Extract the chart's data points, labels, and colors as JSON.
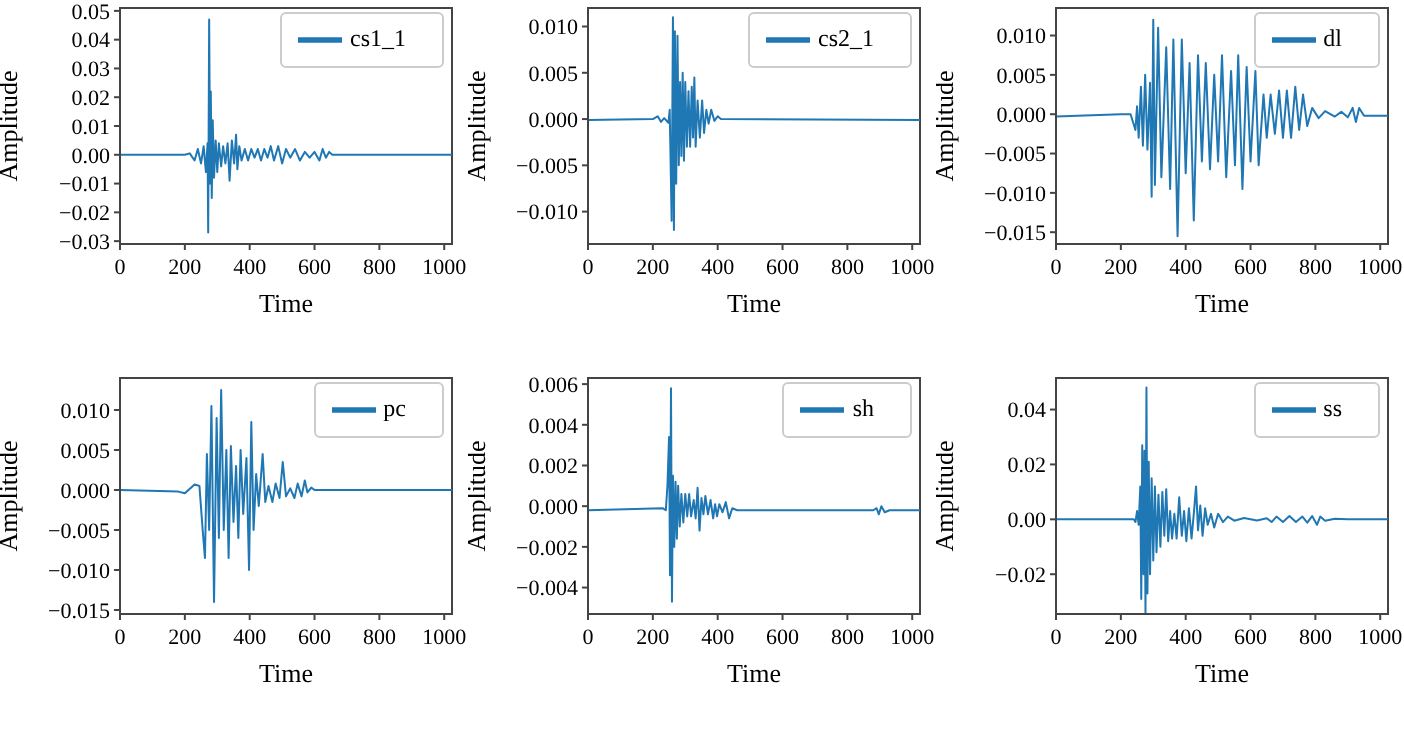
{
  "chart_data": [
    {
      "type": "line",
      "xlabel": "Time",
      "ylabel": "Amplitude",
      "legend": "top right",
      "xlim": [
        0,
        1024
      ],
      "xticks": [
        0,
        200,
        400,
        600,
        800,
        1000
      ],
      "ylim": [
        -0.031,
        0.051
      ],
      "yticks": [
        {
          "value": -0.03,
          "label": "−0.03"
        },
        {
          "value": -0.02,
          "label": "−0.02"
        },
        {
          "value": -0.01,
          "label": "−0.01"
        },
        {
          "value": 0,
          "label": "0.00"
        },
        {
          "value": 0.01,
          "label": "0.01"
        },
        {
          "value": 0.02,
          "label": "0.02"
        },
        {
          "value": 0.03,
          "label": "0.03"
        },
        {
          "value": 0.04,
          "label": "0.04"
        },
        {
          "value": 0.05,
          "label": "0.05"
        }
      ],
      "series": [
        {
          "name": "cs1_1",
          "color": "#1f77b4",
          "x": [
            0,
            200,
            215,
            230,
            240,
            250,
            258,
            265,
            270,
            272,
            275,
            278,
            280,
            283,
            286,
            290,
            295,
            300,
            305,
            312,
            318,
            325,
            332,
            338,
            345,
            352,
            358,
            362,
            368,
            375,
            385,
            395,
            405,
            415,
            425,
            435,
            445,
            455,
            465,
            475,
            488,
            500,
            512,
            525,
            540,
            555,
            570,
            585,
            600,
            615,
            625,
            635,
            645,
            655,
            1024
          ],
          "values": [
            0,
            0,
            0.0005,
            -0.002,
            0.002,
            -0.003,
            0.003,
            -0.006,
            0.004,
            -0.027,
            0.047,
            -0.01,
            0.022,
            -0.015,
            0.012,
            -0.008,
            0.005,
            -0.006,
            0.004,
            -0.004,
            0.003,
            -0.003,
            0.004,
            -0.009,
            0.005,
            -0.003,
            0.007,
            -0.005,
            0.003,
            -0.002,
            0.002,
            -0.002,
            0.002,
            -0.001,
            0.002,
            -0.002,
            0.002,
            -0.001,
            0.003,
            -0.002,
            0.003,
            -0.003,
            0.002,
            -0.001,
            0.002,
            -0.002,
            0.001,
            -0.001,
            0.001,
            -0.002,
            0.002,
            -0.001,
            0.001,
            0,
            0
          ]
        }
      ]
    },
    {
      "type": "line",
      "xlabel": "Time",
      "ylabel": "Amplitude",
      "legend": "top right",
      "xlim": [
        0,
        1024
      ],
      "xticks": [
        0,
        200,
        400,
        600,
        800,
        1000
      ],
      "ylim": [
        -0.0135,
        0.012
      ],
      "yticks": [
        {
          "value": -0.01,
          "label": "−0.010"
        },
        {
          "value": -0.005,
          "label": "−0.005"
        },
        {
          "value": 0,
          "label": "0.000"
        },
        {
          "value": 0.005,
          "label": "0.005"
        },
        {
          "value": 0.01,
          "label": "0.010"
        }
      ],
      "series": [
        {
          "name": "cs2_1",
          "color": "#1f77b4",
          "x": [
            0,
            200,
            215,
            225,
            235,
            248,
            252,
            258,
            262,
            265,
            268,
            272,
            276,
            280,
            284,
            288,
            292,
            296,
            300,
            305,
            310,
            315,
            320,
            324,
            328,
            332,
            338,
            345,
            352,
            358,
            365,
            372,
            380,
            390,
            400,
            410,
            1024
          ],
          "values": [
            -0.0001,
            0,
            0.0003,
            -0.0003,
            0.0001,
            -0.0004,
            0.001,
            -0.011,
            0.011,
            -0.012,
            0.0095,
            -0.007,
            0.009,
            -0.005,
            0.004,
            -0.004,
            0.005,
            -0.0045,
            0.004,
            -0.003,
            0.003,
            -0.003,
            0.0035,
            -0.002,
            0.0045,
            -0.003,
            0.002,
            -0.002,
            0.002,
            -0.0015,
            0.001,
            -0.0005,
            0.001,
            -0.0002,
            0.0003,
            0,
            -0.0001
          ]
        }
      ]
    },
    {
      "type": "line",
      "xlabel": "Time",
      "ylabel": "Amplitude",
      "legend": "top right",
      "xlim": [
        0,
        1024
      ],
      "xticks": [
        0,
        200,
        400,
        600,
        800,
        1000
      ],
      "ylim": [
        -0.0165,
        0.0135
      ],
      "yticks": [
        {
          "value": -0.015,
          "label": "−0.015"
        },
        {
          "value": -0.01,
          "label": "−0.010"
        },
        {
          "value": -0.005,
          "label": "−0.005"
        },
        {
          "value": 0,
          "label": "0.000"
        },
        {
          "value": 0.005,
          "label": "0.005"
        },
        {
          "value": 0.01,
          "label": "0.010"
        }
      ],
      "series": [
        {
          "name": "dl",
          "color": "#1f77b4",
          "x": [
            0,
            200,
            230,
            245,
            250,
            255,
            262,
            268,
            275,
            282,
            290,
            295,
            300,
            305,
            315,
            325,
            340,
            352,
            362,
            375,
            388,
            400,
            412,
            425,
            438,
            450,
            462,
            475,
            488,
            500,
            512,
            525,
            540,
            552,
            562,
            575,
            588,
            600,
            615,
            625,
            640,
            650,
            662,
            675,
            688,
            700,
            712,
            725,
            738,
            750,
            762,
            775,
            790,
            810,
            830,
            860,
            880,
            900,
            915,
            925,
            935,
            950,
            1024
          ],
          "values": [
            -0.0003,
            0,
            0,
            -0.002,
            0.001,
            -0.003,
            0.0035,
            -0.004,
            0.005,
            -0.0045,
            0.004,
            -0.0105,
            0.012,
            -0.009,
            0.011,
            -0.008,
            0.0085,
            -0.0095,
            0.0095,
            -0.0155,
            0.0095,
            -0.0075,
            0.0065,
            -0.0135,
            0.0075,
            -0.006,
            0.0065,
            -0.007,
            0.005,
            -0.006,
            0.0075,
            -0.008,
            0.0055,
            -0.0065,
            0.0075,
            -0.0095,
            0.006,
            -0.006,
            0.0055,
            -0.0065,
            0.0025,
            -0.003,
            0.0025,
            -0.0025,
            0.003,
            -0.003,
            0.003,
            -0.003,
            0.0035,
            -0.002,
            0.0025,
            -0.0015,
            0.0008,
            -0.0005,
            0.0004,
            -0.0003,
            0.0003,
            -0.0004,
            0.0008,
            -0.001,
            0.0008,
            -0.0002,
            -0.0002
          ]
        }
      ]
    },
    {
      "type": "line",
      "xlabel": "Time",
      "ylabel": "Amplitude",
      "legend": "top right",
      "xlim": [
        0,
        1024
      ],
      "xticks": [
        0,
        200,
        400,
        600,
        800,
        1000
      ],
      "ylim": [
        -0.0155,
        0.014
      ],
      "yticks": [
        {
          "value": -0.015,
          "label": "−0.015"
        },
        {
          "value": -0.01,
          "label": "−0.010"
        },
        {
          "value": -0.005,
          "label": "−0.005"
        },
        {
          "value": 0,
          "label": "0.000"
        },
        {
          "value": 0.005,
          "label": "0.005"
        },
        {
          "value": 0.01,
          "label": "0.010"
        }
      ],
      "series": [
        {
          "name": "pc",
          "color": "#1f77b4",
          "x": [
            0,
            180,
            200,
            230,
            245,
            255,
            262,
            268,
            275,
            282,
            290,
            298,
            305,
            312,
            320,
            328,
            335,
            342,
            350,
            358,
            365,
            372,
            380,
            390,
            398,
            405,
            412,
            420,
            428,
            440,
            448,
            458,
            470,
            480,
            492,
            502,
            512,
            525,
            538,
            548,
            560,
            570,
            578,
            590,
            600,
            1024
          ],
          "values": [
            0,
            -0.0002,
            -0.0004,
            0.0007,
            0.0005,
            -0.005,
            -0.0085,
            0.0045,
            -0.005,
            0.0105,
            -0.014,
            0.009,
            -0.006,
            0.0125,
            -0.005,
            0.005,
            -0.0085,
            0.0055,
            -0.004,
            0.003,
            -0.006,
            0.005,
            -0.003,
            0.004,
            -0.01,
            0.0085,
            -0.005,
            0.002,
            -0.002,
            0.0045,
            -0.0015,
            0.0005,
            -0.0015,
            0.0008,
            -0.001,
            0.0035,
            -0.0008,
            0.0002,
            -0.001,
            0.0008,
            -0.0008,
            0.0012,
            -0.0003,
            0.0003,
            0,
            0
          ]
        }
      ]
    },
    {
      "type": "line",
      "xlabel": "Time",
      "ylabel": "Amplitude",
      "legend": "top right",
      "xlim": [
        0,
        1024
      ],
      "xticks": [
        0,
        200,
        400,
        600,
        800,
        1000
      ],
      "ylim": [
        -0.0053,
        0.0063
      ],
      "yticks": [
        {
          "value": -0.004,
          "label": "−0.004"
        },
        {
          "value": -0.002,
          "label": "−0.002"
        },
        {
          "value": 0,
          "label": "0.000"
        },
        {
          "value": 0.002,
          "label": "0.002"
        },
        {
          "value": 0.004,
          "label": "0.004"
        },
        {
          "value": 0.006,
          "label": "0.006"
        }
      ],
      "series": [
        {
          "name": "sh",
          "color": "#1f77b4",
          "x": [
            0,
            230,
            240,
            245,
            250,
            253,
            256,
            259,
            262,
            266,
            270,
            274,
            278,
            283,
            288,
            294,
            300,
            306,
            312,
            318,
            326,
            332,
            338,
            344,
            350,
            356,
            362,
            370,
            378,
            386,
            392,
            398,
            405,
            415,
            425,
            435,
            445,
            460,
            880,
            890,
            897,
            905,
            915,
            930,
            1024
          ],
          "values": [
            -0.0002,
            -0.0001,
            -0.0002,
            0.001,
            0.0034,
            -0.0034,
            0.0058,
            -0.0047,
            0.0015,
            -0.002,
            0.0012,
            -0.0016,
            0.001,
            -0.001,
            0.0006,
            -0.0008,
            0.0006,
            -0.0005,
            0.0006,
            -0.0005,
            0.0003,
            -0.0006,
            0.0009,
            -0.0012,
            0.0004,
            -0.0004,
            0.0005,
            -0.0004,
            0.0003,
            -0.0006,
            0.0001,
            -0.0005,
            0.0001,
            -0.0003,
            0.0002,
            -0.0006,
            -0.0001,
            -0.0002,
            -0.0002,
            -0.0001,
            -0.0004,
            0,
            -0.0003,
            -0.0002,
            -0.0002
          ]
        }
      ]
    },
    {
      "type": "line",
      "xlabel": "Time",
      "ylabel": "Amplitude",
      "legend": "top right",
      "xlim": [
        0,
        1024
      ],
      "xticks": [
        0,
        200,
        400,
        600,
        800,
        1000
      ],
      "ylim": [
        -0.0345,
        0.0515
      ],
      "yticks": [
        {
          "value": -0.02,
          "label": "−0.02"
        },
        {
          "value": 0,
          "label": "0.00"
        },
        {
          "value": 0.02,
          "label": "0.02"
        },
        {
          "value": 0.04,
          "label": "0.04"
        }
      ],
      "series": [
        {
          "name": "ss",
          "color": "#1f77b4",
          "x": [
            0,
            240,
            245,
            250,
            255,
            260,
            263,
            266,
            270,
            273,
            276,
            279,
            282,
            286,
            290,
            295,
            300,
            305,
            310,
            316,
            322,
            328,
            334,
            340,
            346,
            352,
            358,
            365,
            372,
            380,
            388,
            395,
            402,
            410,
            418,
            425,
            432,
            438,
            445,
            452,
            460,
            468,
            478,
            488,
            500,
            515,
            530,
            550,
            580,
            620,
            650,
            665,
            680,
            700,
            720,
            740,
            760,
            775,
            790,
            805,
            815,
            830,
            860,
            900,
            1024
          ],
          "values": [
            0,
            0,
            -0.001,
            0.003,
            -0.002,
            0.012,
            -0.029,
            0.027,
            -0.02,
            0.025,
            -0.034,
            0.048,
            -0.027,
            0.021,
            -0.02,
            0.015,
            -0.015,
            0.012,
            -0.012,
            0.009,
            -0.01,
            0.01,
            -0.006,
            0.011,
            -0.008,
            0.003,
            -0.007,
            0.002,
            -0.007,
            0.008,
            -0.006,
            0.003,
            -0.008,
            0.004,
            -0.007,
            0.002,
            0.012,
            -0.004,
            0.005,
            -0.006,
            0.004,
            -0.002,
            0.002,
            -0.003,
            0.002,
            -0.001,
            0.001,
            -0.0005,
            0.0005,
            -0.0004,
            0.0004,
            -0.001,
            0.001,
            -0.001,
            0.0012,
            -0.001,
            0.001,
            -0.0012,
            0.0012,
            -0.002,
            0.001,
            -0.0005,
            0.0002,
            0,
            0
          ]
        }
      ]
    }
  ]
}
